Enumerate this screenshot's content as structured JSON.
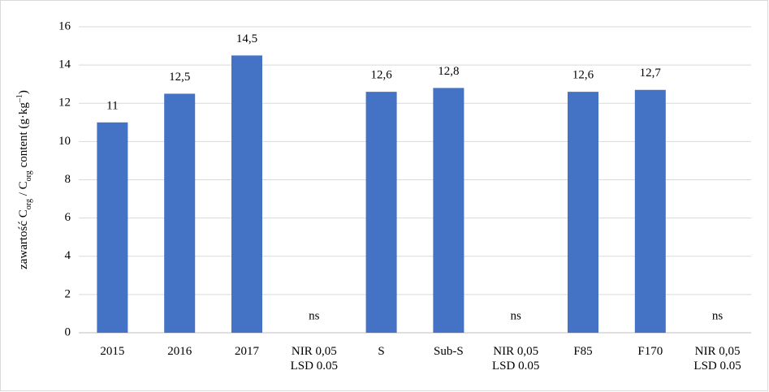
{
  "chart_data": {
    "type": "bar",
    "ylabel_parts": [
      {
        "text": "zawartość C"
      },
      {
        "text": "org",
        "sub": true
      },
      {
        "text": " / C"
      },
      {
        "text": "org",
        "sub": true
      },
      {
        "text": " content (g·kg"
      },
      {
        "text": "–1",
        "sup": true
      },
      {
        "text": ")"
      }
    ],
    "categories": [
      "2015",
      "2016",
      "2017",
      "NIR 0,05\nLSD 0.05",
      "S",
      "Sub-S",
      "NIR 0,05\nLSD 0.05",
      "F85",
      "F170",
      "NIR 0,05\nLSD 0.05"
    ],
    "values": [
      11,
      12.5,
      14.5,
      null,
      12.6,
      12.8,
      null,
      12.6,
      12.7,
      null
    ],
    "value_labels": [
      "11",
      "12,5",
      "14,5",
      "ns",
      "12,6",
      "12,8",
      "ns",
      "12,6",
      "12,7",
      "ns"
    ],
    "color": "#4472c4",
    "ylim": [
      0,
      16
    ],
    "yticks": [
      0,
      2,
      4,
      6,
      8,
      10,
      12,
      14,
      16
    ],
    "grid": true
  }
}
